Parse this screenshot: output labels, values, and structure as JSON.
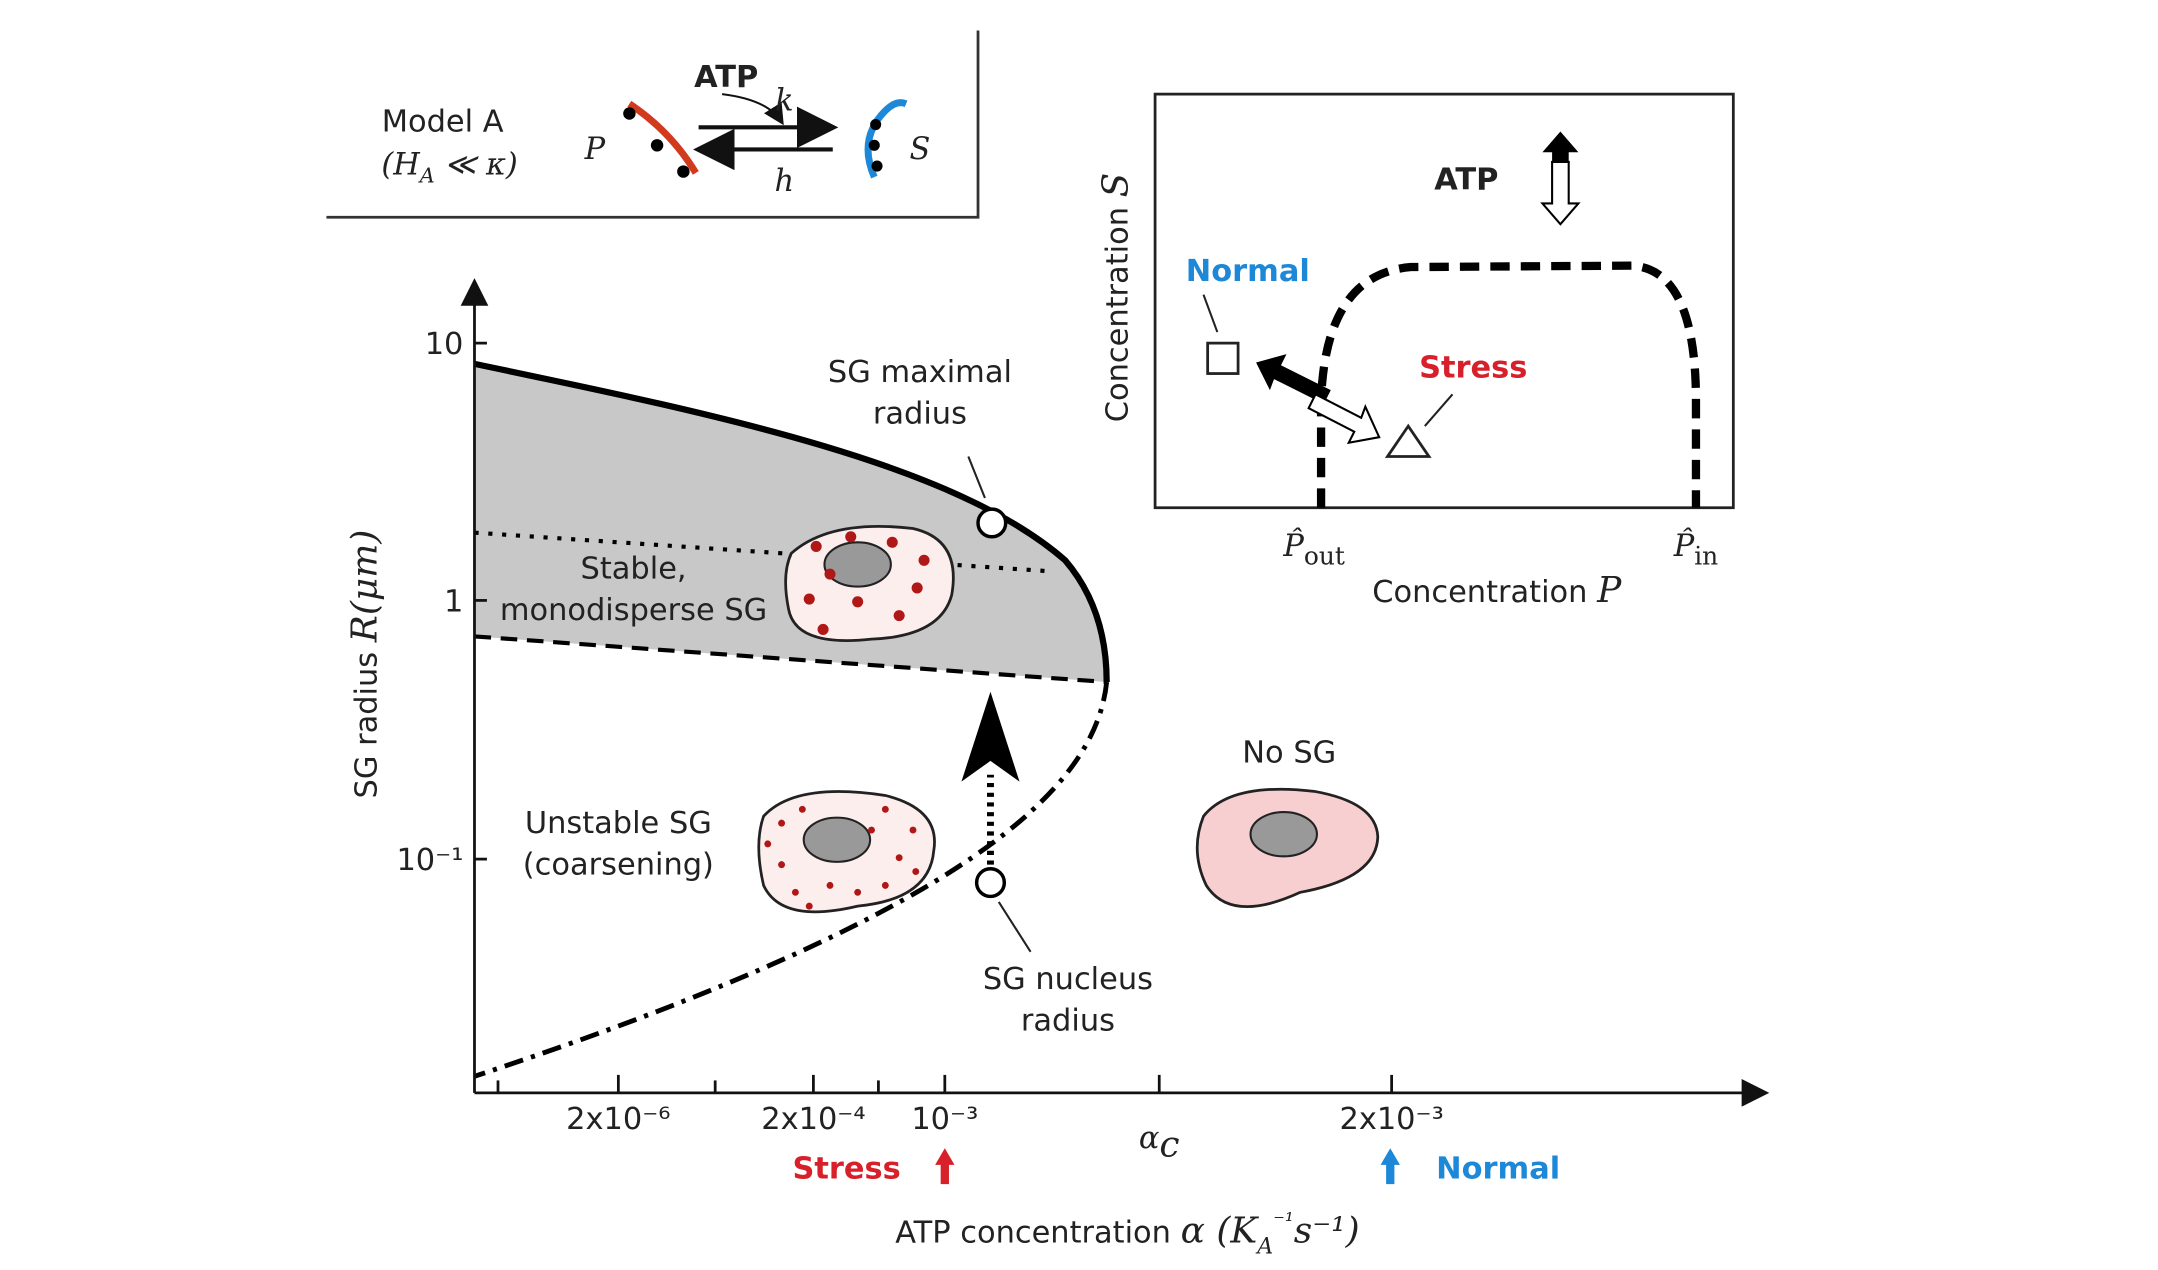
{
  "model_box": {
    "title": "Model A",
    "condition": [
      "(H",
      "A",
      " ≪ κ)"
    ],
    "reactant": "P",
    "atp": "ATP",
    "forward_rate": "k",
    "backward_rate": "h",
    "product": "S"
  },
  "inset": {
    "y_label": [
      "Concentration ",
      "S"
    ],
    "x_label": [
      "Concentration ",
      "P"
    ],
    "atp": "ATP",
    "normal": "Normal",
    "stress": "Stress",
    "p_out": [
      "P̂",
      "out"
    ],
    "p_in": [
      "P̂",
      "in"
    ]
  },
  "main": {
    "y_label": [
      "SG radius ",
      "R(μm)"
    ],
    "y_ticks": [
      "10",
      "1",
      "10⁻¹"
    ],
    "x_ticks": [
      "2x10⁻⁶",
      "2x10⁻⁴",
      "10⁻³",
      "α",
      "c",
      "2x10⁻³"
    ],
    "stress": "Stress",
    "normal": "Normal",
    "x_label": [
      "ATP concentration  ",
      "α (K",
      "A",
      "⁻¹",
      "s⁻¹)"
    ],
    "annotations": {
      "max_radius": [
        "SG maximal",
        "radius"
      ],
      "stable": [
        "Stable,",
        "monodisperse SG"
      ],
      "unstable": [
        "Unstable SG",
        "(coarsening)"
      ],
      "no_sg": "No SG",
      "nucleus": [
        "SG nucleus",
        "radius"
      ]
    }
  }
}
